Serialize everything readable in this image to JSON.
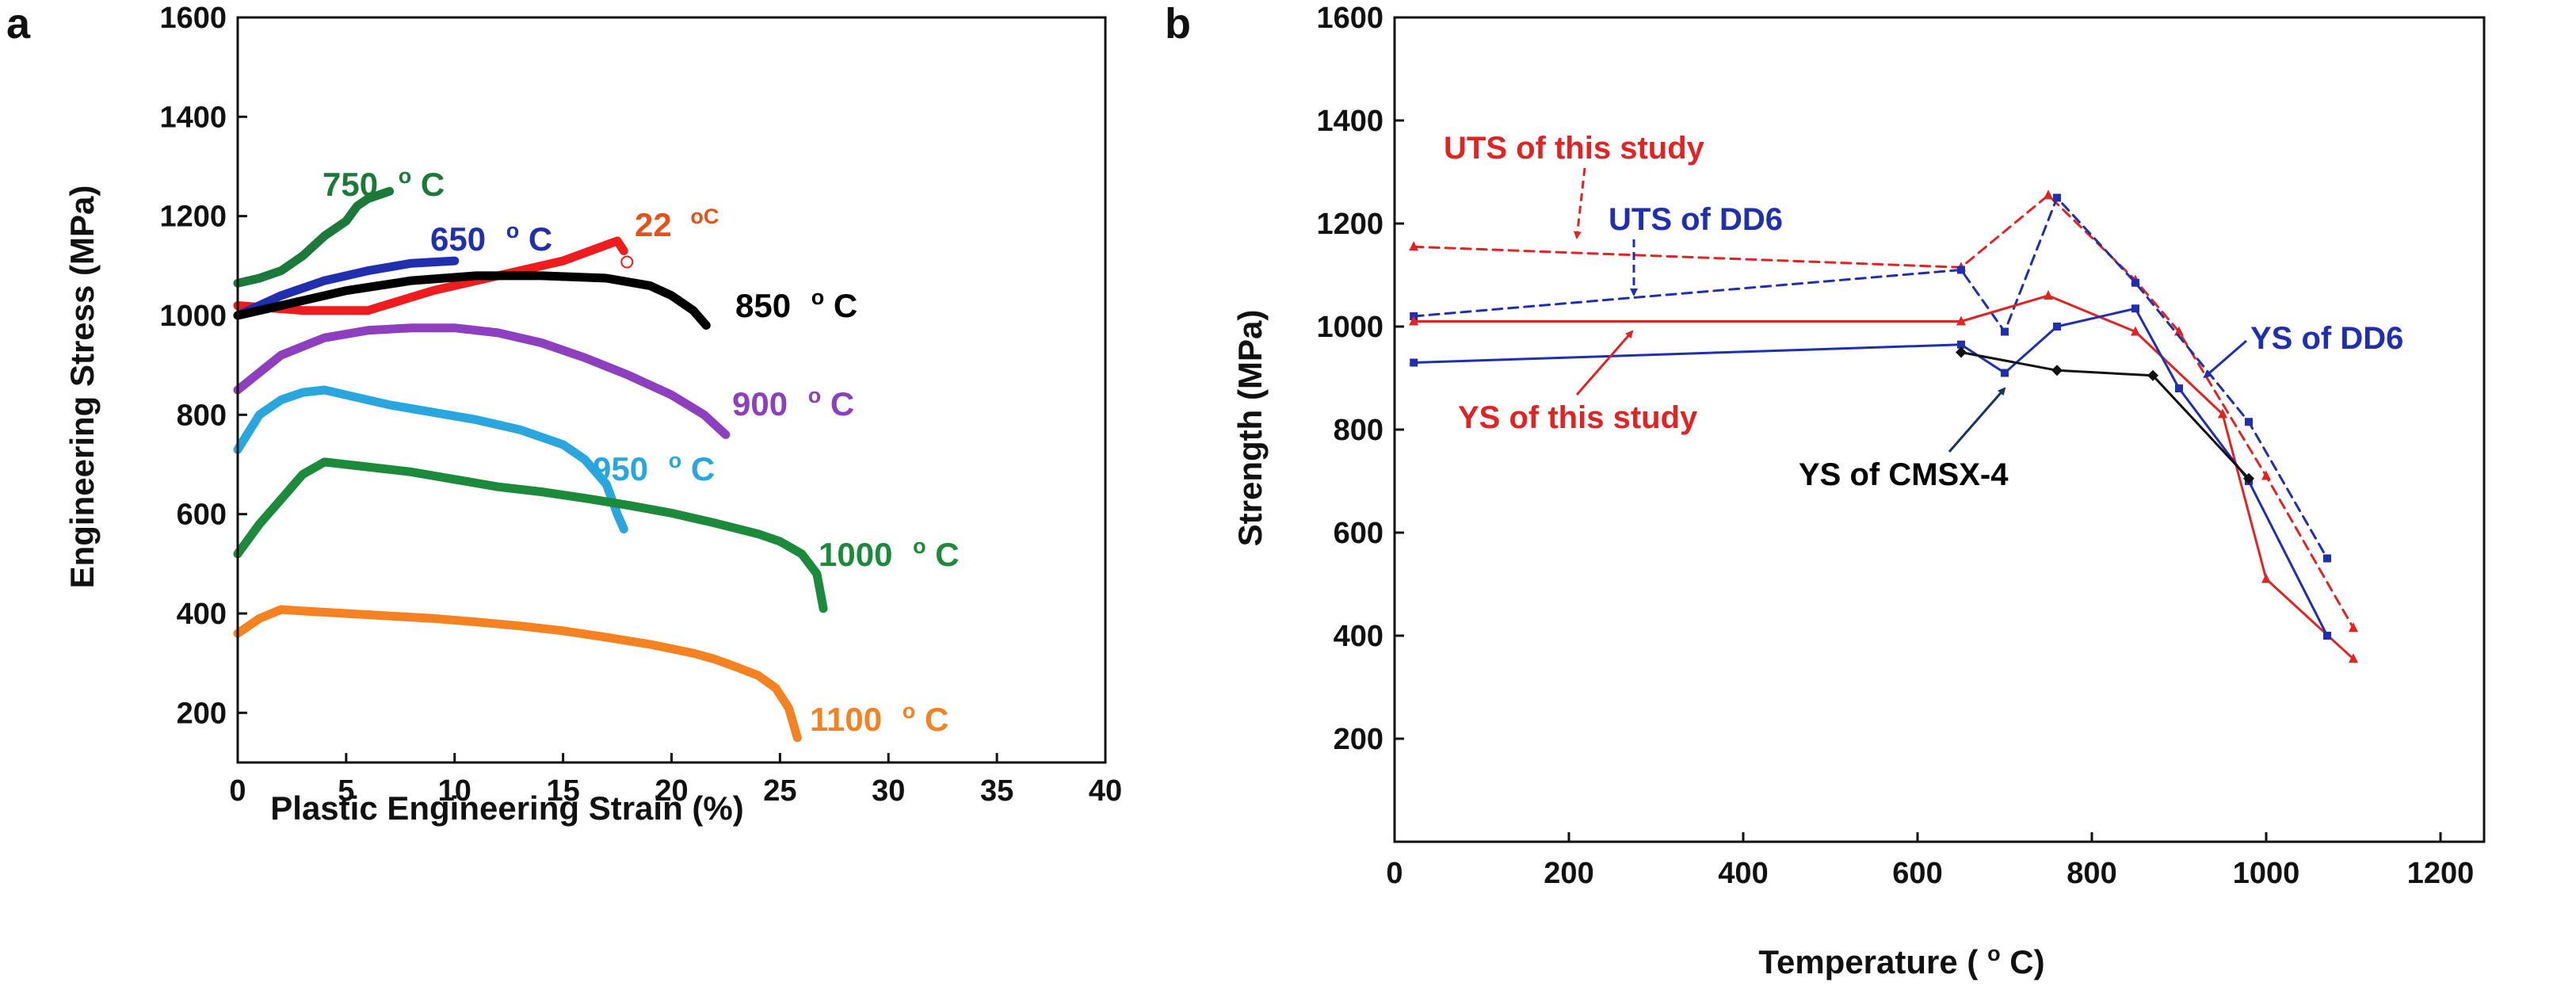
{
  "chart_data": [
    {
      "panel": "a",
      "type": "line",
      "xlabel": "Plastic Engineering Strain (%)",
      "ylabel": "Engineering Stress (MPa)",
      "xlim": [
        0,
        40
      ],
      "ylim": [
        100,
        1600
      ],
      "xticks": [
        "0",
        "5",
        "10",
        "15",
        "20",
        "25",
        "30",
        "35",
        "40"
      ],
      "yticks": [
        "200",
        "400",
        "600",
        "800",
        "1000",
        "1200",
        "1400",
        "1600"
      ],
      "series": [
        {
          "name": "22 °C",
          "label": "22",
          "unit": "oC",
          "color": "#ee1c1c",
          "x": [
            0,
            3,
            6,
            9,
            12,
            15,
            17.5,
            17.8
          ],
          "y": [
            1020,
            1010,
            1010,
            1050,
            1080,
            1110,
            1150,
            1130
          ]
        },
        {
          "name": "650 °C",
          "label": "650",
          "unit": "oC",
          "color": "#1f2fae",
          "x": [
            0,
            2,
            4,
            6,
            8,
            10
          ],
          "y": [
            1000,
            1040,
            1070,
            1090,
            1105,
            1110
          ]
        },
        {
          "name": "750 °C",
          "label": "750",
          "unit": "oC",
          "color": "#1b7a3a",
          "x": [
            0,
            1,
            2,
            3,
            4,
            5,
            5.5,
            6,
            7
          ],
          "y": [
            1065,
            1075,
            1090,
            1120,
            1160,
            1190,
            1220,
            1235,
            1250
          ]
        },
        {
          "name": "850 °C",
          "label": "850",
          "unit": "oC",
          "color": "#000000",
          "x": [
            0,
            2,
            5,
            8,
            11,
            14,
            17,
            19,
            20,
            21,
            21.6
          ],
          "y": [
            1000,
            1020,
            1050,
            1070,
            1080,
            1080,
            1075,
            1060,
            1040,
            1010,
            980
          ]
        },
        {
          "name": "900 °C",
          "label": "900",
          "unit": "oC",
          "color": "#8e3fbf",
          "x": [
            0,
            2,
            4,
            6,
            8,
            10,
            12,
            14,
            16,
            18,
            20,
            21.5,
            22.5
          ],
          "y": [
            850,
            920,
            955,
            970,
            975,
            975,
            965,
            945,
            915,
            880,
            840,
            800,
            760
          ]
        },
        {
          "name": "950 °C",
          "label": "950",
          "unit": "oC",
          "color": "#2aa6df",
          "x": [
            0,
            1,
            2,
            3,
            4,
            5,
            7,
            9,
            11,
            13,
            15,
            16,
            17,
            17.5,
            17.8
          ],
          "y": [
            730,
            800,
            830,
            845,
            850,
            840,
            820,
            805,
            790,
            770,
            740,
            710,
            660,
            600,
            570
          ]
        },
        {
          "name": "1000 °C",
          "label": "1000",
          "unit": "oC",
          "color": "#1b8a3a",
          "x": [
            0,
            1,
            2,
            3,
            4,
            6,
            8,
            10,
            12,
            14,
            16,
            18,
            20,
            22,
            24,
            25,
            26,
            26.7,
            27
          ],
          "y": [
            520,
            580,
            630,
            680,
            705,
            695,
            685,
            670,
            655,
            645,
            632,
            618,
            602,
            582,
            560,
            545,
            520,
            480,
            410
          ]
        },
        {
          "name": "1100 °C",
          "label": "1100",
          "unit": "oC",
          "color": "#f58220",
          "x": [
            0,
            1,
            2,
            3,
            5,
            7,
            9,
            11,
            13,
            15,
            17,
            19,
            21,
            22,
            23,
            24,
            24.8,
            25.4,
            25.8
          ],
          "y": [
            360,
            390,
            408,
            405,
            400,
            395,
            390,
            383,
            375,
            365,
            352,
            338,
            320,
            308,
            292,
            275,
            250,
            210,
            150
          ]
        }
      ]
    },
    {
      "panel": "b",
      "type": "line",
      "xlabel": "Temperature (",
      "xlabel_sup": "o",
      "xlabel_end": "C)",
      "ylabel": "Strength (MPa)",
      "xlim": [
        0,
        1250
      ],
      "ylim": [
        0,
        1600
      ],
      "xticks": [
        "0",
        "200",
        "400",
        "600",
        "800",
        "1000",
        "1200"
      ],
      "yticks": [
        "200",
        "400",
        "600",
        "800",
        "1000",
        "1200",
        "1400",
        "1600"
      ],
      "series": [
        {
          "name": "UTS of this study",
          "color": "#e02424",
          "dashed": true,
          "marker": "triangle",
          "x": [
            22,
            650,
            750,
            850,
            900,
            1000,
            1100
          ],
          "y": [
            1155,
            1115,
            1255,
            1090,
            990,
            710,
            415
          ]
        },
        {
          "name": "UTS of DD6",
          "color": "#1f2fae",
          "dashed": true,
          "marker": "square",
          "x": [
            22,
            650,
            700,
            760,
            850,
            980,
            1070
          ],
          "y": [
            1020,
            1110,
            990,
            1250,
            1085,
            815,
            550
          ]
        },
        {
          "name": "YS of this study",
          "color": "#e02424",
          "dashed": false,
          "marker": "triangle",
          "x": [
            22,
            650,
            750,
            850,
            950,
            1000,
            1100
          ],
          "y": [
            1010,
            1010,
            1060,
            990,
            830,
            510,
            355
          ]
        },
        {
          "name": "YS of DD6",
          "color": "#1f2fae",
          "dashed": false,
          "marker": "square",
          "x": [
            22,
            650,
            700,
            760,
            850,
            900,
            980,
            1070
          ],
          "y": [
            930,
            965,
            910,
            1000,
            1035,
            880,
            700,
            400
          ]
        },
        {
          "name": "YS of CMSX-4",
          "color": "#111111",
          "dashed": false,
          "marker": "diamond",
          "x": [
            650,
            760,
            870,
            980
          ],
          "y": [
            950,
            915,
            905,
            705
          ]
        }
      ],
      "annotations": [
        "UTS of this study",
        "UTS of DD6",
        "YS of this study",
        "YS of DD6",
        "YS of CMSX-4"
      ]
    }
  ]
}
